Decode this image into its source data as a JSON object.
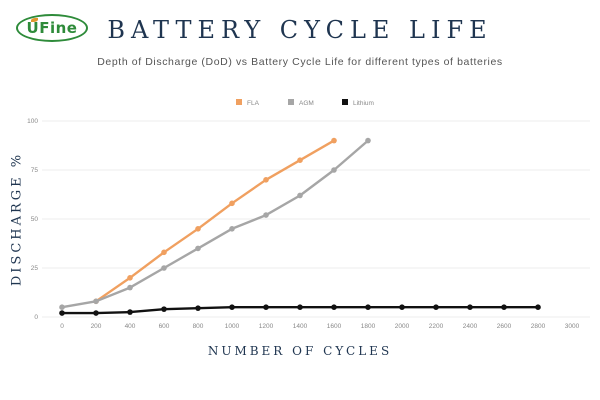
{
  "logo": {
    "text": "UFine"
  },
  "chart_data": {
    "type": "line",
    "title": "BATTERY CYCLE LIFE",
    "subtitle": "Depth of Discharge (DoD) vs Battery Cycle Life for different types of batteries",
    "xlabel": "NUMBER OF CYCLES",
    "ylabel": "DISCHARGE %",
    "xlim": [
      0,
      3000
    ],
    "ylim": [
      0,
      100
    ],
    "x_ticks": [
      0,
      200,
      400,
      600,
      800,
      1000,
      1200,
      1400,
      1600,
      1800,
      2000,
      2200,
      2400,
      2600,
      2800,
      3000
    ],
    "y_ticks": [
      0,
      25,
      50,
      75,
      100
    ],
    "grid": "horizontal",
    "legend_position": "top-center",
    "series": [
      {
        "name": "FLA",
        "color": "#f0a060",
        "x": [
          200,
          400,
          600,
          800,
          1000,
          1200,
          1400,
          1600
        ],
        "y": [
          8,
          20,
          33,
          45,
          58,
          70,
          80,
          90
        ]
      },
      {
        "name": "AGM",
        "color": "#a6a6a6",
        "x": [
          0,
          200,
          400,
          600,
          800,
          1000,
          1200,
          1400,
          1600,
          1800
        ],
        "y": [
          5,
          8,
          15,
          25,
          35,
          45,
          52,
          62,
          75,
          90
        ]
      },
      {
        "name": "Lithium",
        "color": "#111111",
        "x": [
          0,
          200,
          400,
          600,
          800,
          1000,
          1200,
          1400,
          1600,
          1800,
          2000,
          2200,
          2400,
          2600,
          2800
        ],
        "y": [
          2,
          2,
          2.5,
          4,
          4.5,
          5,
          5,
          5,
          5,
          5,
          5,
          5,
          5,
          5,
          5
        ]
      }
    ]
  }
}
